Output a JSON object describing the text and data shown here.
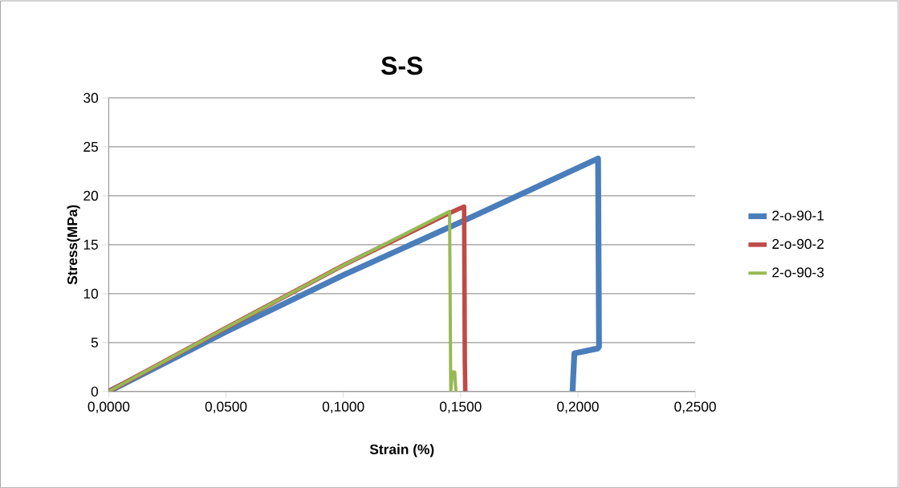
{
  "chart_data": {
    "type": "line",
    "title": "S-S",
    "xlabel": "Strain (%)",
    "ylabel": "Stress(MPa)",
    "xlim": [
      0,
      0.25
    ],
    "xticks": [
      {
        "value": 0,
        "label": "0,0000"
      },
      {
        "value": 0.05,
        "label": "0,0500"
      },
      {
        "value": 0.1,
        "label": "0,1000"
      },
      {
        "value": 0.15,
        "label": "0,1500"
      },
      {
        "value": 0.2,
        "label": "0,2000"
      },
      {
        "value": 0.25,
        "label": "0,2500"
      }
    ],
    "ylim": [
      0,
      30
    ],
    "yticks": [
      0,
      5,
      10,
      15,
      20,
      25,
      30
    ],
    "grid": "y",
    "legend": "right",
    "marker": "none",
    "line_style": "solid",
    "series": [
      {
        "name": "2-o-90-1",
        "color": "#4a7ebb",
        "x": [
          0,
          0.05,
          0.1,
          0.15,
          0.2086,
          0.209,
          0.2085,
          0.1985,
          0.1977
        ],
        "values": [
          0,
          6.1,
          11.9,
          17.3,
          23.8,
          4.6,
          4.4,
          3.9,
          0
        ]
      },
      {
        "name": "2-o-90-2",
        "color": "#be4b48",
        "x": [
          0,
          0.05,
          0.1,
          0.145,
          0.1515,
          0.1518,
          0.152
        ],
        "values": [
          0,
          6.5,
          12.9,
          18.2,
          18.9,
          3,
          0
        ]
      },
      {
        "name": "2-o-90-3",
        "color": "#98b954",
        "x": [
          0,
          0.05,
          0.1,
          0.1453,
          0.1458,
          0.1465,
          0.1475,
          0.148
        ],
        "values": [
          0,
          6.5,
          12.9,
          18.4,
          0,
          2,
          2,
          0
        ]
      }
    ]
  }
}
